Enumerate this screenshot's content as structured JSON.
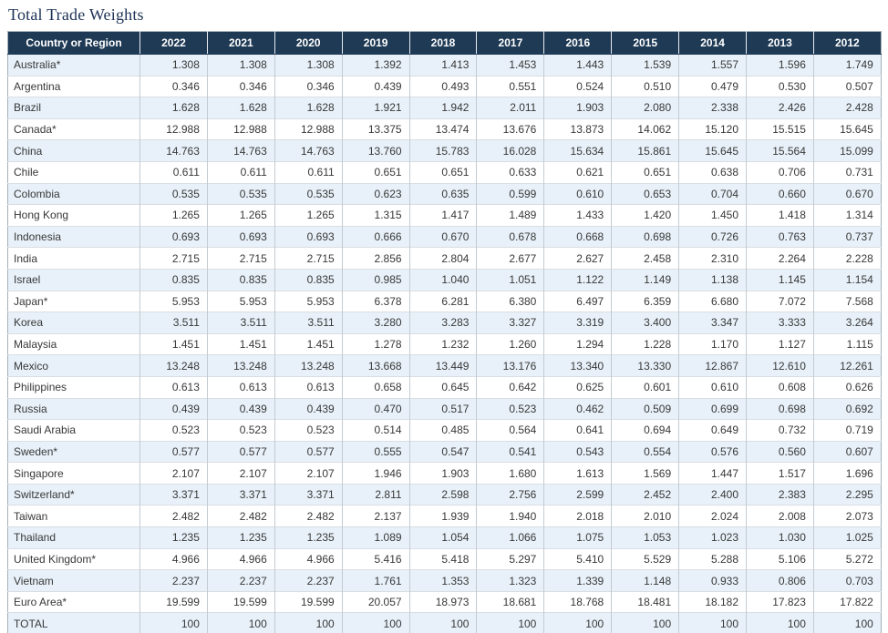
{
  "page_title": "Total Trade Weights",
  "colors": {
    "title_color": "#1c3256",
    "header_bg": "#1f3a55",
    "header_text": "#ffffff",
    "alt_row_bg": "#e8f1f9",
    "row_bg": "#ffffff",
    "cell_text": "#383838",
    "grid_border": "#c3cbd1",
    "row_border": "#d9dee3",
    "outer_border": "#a3b1bb"
  },
  "chart_data": {
    "type": "table",
    "title": "Total Trade Weights",
    "columns": [
      "Country or Region",
      "2022",
      "2021",
      "2020",
      "2019",
      "2018",
      "2017",
      "2016",
      "2015",
      "2014",
      "2013",
      "2012"
    ],
    "rows": [
      {
        "label": "Australia*",
        "values": [
          "1.308",
          "1.308",
          "1.308",
          "1.392",
          "1.413",
          "1.453",
          "1.443",
          "1.539",
          "1.557",
          "1.596",
          "1.749"
        ]
      },
      {
        "label": "Argentina",
        "values": [
          "0.346",
          "0.346",
          "0.346",
          "0.439",
          "0.493",
          "0.551",
          "0.524",
          "0.510",
          "0.479",
          "0.530",
          "0.507"
        ]
      },
      {
        "label": "Brazil",
        "values": [
          "1.628",
          "1.628",
          "1.628",
          "1.921",
          "1.942",
          "2.011",
          "1.903",
          "2.080",
          "2.338",
          "2.426",
          "2.428"
        ]
      },
      {
        "label": "Canada*",
        "values": [
          "12.988",
          "12.988",
          "12.988",
          "13.375",
          "13.474",
          "13.676",
          "13.873",
          "14.062",
          "15.120",
          "15.515",
          "15.645"
        ]
      },
      {
        "label": "China",
        "values": [
          "14.763",
          "14.763",
          "14.763",
          "13.760",
          "15.783",
          "16.028",
          "15.634",
          "15.861",
          "15.645",
          "15.564",
          "15.099"
        ]
      },
      {
        "label": "Chile",
        "values": [
          "0.611",
          "0.611",
          "0.611",
          "0.651",
          "0.651",
          "0.633",
          "0.621",
          "0.651",
          "0.638",
          "0.706",
          "0.731"
        ]
      },
      {
        "label": "Colombia",
        "values": [
          "0.535",
          "0.535",
          "0.535",
          "0.623",
          "0.635",
          "0.599",
          "0.610",
          "0.653",
          "0.704",
          "0.660",
          "0.670"
        ]
      },
      {
        "label": "Hong Kong",
        "values": [
          "1.265",
          "1.265",
          "1.265",
          "1.315",
          "1.417",
          "1.489",
          "1.433",
          "1.420",
          "1.450",
          "1.418",
          "1.314"
        ]
      },
      {
        "label": "Indonesia",
        "values": [
          "0.693",
          "0.693",
          "0.693",
          "0.666",
          "0.670",
          "0.678",
          "0.668",
          "0.698",
          "0.726",
          "0.763",
          "0.737"
        ]
      },
      {
        "label": "India",
        "values": [
          "2.715",
          "2.715",
          "2.715",
          "2.856",
          "2.804",
          "2.677",
          "2.627",
          "2.458",
          "2.310",
          "2.264",
          "2.228"
        ]
      },
      {
        "label": "Israel",
        "values": [
          "0.835",
          "0.835",
          "0.835",
          "0.985",
          "1.040",
          "1.051",
          "1.122",
          "1.149",
          "1.138",
          "1.145",
          "1.154"
        ]
      },
      {
        "label": "Japan*",
        "values": [
          "5.953",
          "5.953",
          "5.953",
          "6.378",
          "6.281",
          "6.380",
          "6.497",
          "6.359",
          "6.680",
          "7.072",
          "7.568"
        ]
      },
      {
        "label": "Korea",
        "values": [
          "3.511",
          "3.511",
          "3.511",
          "3.280",
          "3.283",
          "3.327",
          "3.319",
          "3.400",
          "3.347",
          "3.333",
          "3.264"
        ]
      },
      {
        "label": "Malaysia",
        "values": [
          "1.451",
          "1.451",
          "1.451",
          "1.278",
          "1.232",
          "1.260",
          "1.294",
          "1.228",
          "1.170",
          "1.127",
          "1.115"
        ]
      },
      {
        "label": "Mexico",
        "values": [
          "13.248",
          "13.248",
          "13.248",
          "13.668",
          "13.449",
          "13.176",
          "13.340",
          "13.330",
          "12.867",
          "12.610",
          "12.261"
        ]
      },
      {
        "label": "Philippines",
        "values": [
          "0.613",
          "0.613",
          "0.613",
          "0.658",
          "0.645",
          "0.642",
          "0.625",
          "0.601",
          "0.610",
          "0.608",
          "0.626"
        ]
      },
      {
        "label": "Russia",
        "values": [
          "0.439",
          "0.439",
          "0.439",
          "0.470",
          "0.517",
          "0.523",
          "0.462",
          "0.509",
          "0.699",
          "0.698",
          "0.692"
        ]
      },
      {
        "label": "Saudi Arabia",
        "values": [
          "0.523",
          "0.523",
          "0.523",
          "0.514",
          "0.485",
          "0.564",
          "0.641",
          "0.694",
          "0.649",
          "0.732",
          "0.719"
        ]
      },
      {
        "label": "Sweden*",
        "values": [
          "0.577",
          "0.577",
          "0.577",
          "0.555",
          "0.547",
          "0.541",
          "0.543",
          "0.554",
          "0.576",
          "0.560",
          "0.607"
        ]
      },
      {
        "label": "Singapore",
        "values": [
          "2.107",
          "2.107",
          "2.107",
          "1.946",
          "1.903",
          "1.680",
          "1.613",
          "1.569",
          "1.447",
          "1.517",
          "1.696"
        ]
      },
      {
        "label": "Switzerland*",
        "values": [
          "3.371",
          "3.371",
          "3.371",
          "2.811",
          "2.598",
          "2.756",
          "2.599",
          "2.452",
          "2.400",
          "2.383",
          "2.295"
        ]
      },
      {
        "label": "Taiwan",
        "values": [
          "2.482",
          "2.482",
          "2.482",
          "2.137",
          "1.939",
          "1.940",
          "2.018",
          "2.010",
          "2.024",
          "2.008",
          "2.073"
        ]
      },
      {
        "label": "Thailand",
        "values": [
          "1.235",
          "1.235",
          "1.235",
          "1.089",
          "1.054",
          "1.066",
          "1.075",
          "1.053",
          "1.023",
          "1.030",
          "1.025"
        ]
      },
      {
        "label": "United Kingdom*",
        "values": [
          "4.966",
          "4.966",
          "4.966",
          "5.416",
          "5.418",
          "5.297",
          "5.410",
          "5.529",
          "5.288",
          "5.106",
          "5.272"
        ]
      },
      {
        "label": "Vietnam",
        "values": [
          "2.237",
          "2.237",
          "2.237",
          "1.761",
          "1.353",
          "1.323",
          "1.339",
          "1.148",
          "0.933",
          "0.806",
          "0.703"
        ]
      },
      {
        "label": "Euro Area*",
        "values": [
          "19.599",
          "19.599",
          "19.599",
          "20.057",
          "18.973",
          "18.681",
          "18.768",
          "18.481",
          "18.182",
          "17.823",
          "17.822"
        ]
      },
      {
        "label": "TOTAL",
        "values": [
          "100",
          "100",
          "100",
          "100",
          "100",
          "100",
          "100",
          "100",
          "100",
          "100",
          "100"
        ]
      }
    ]
  }
}
